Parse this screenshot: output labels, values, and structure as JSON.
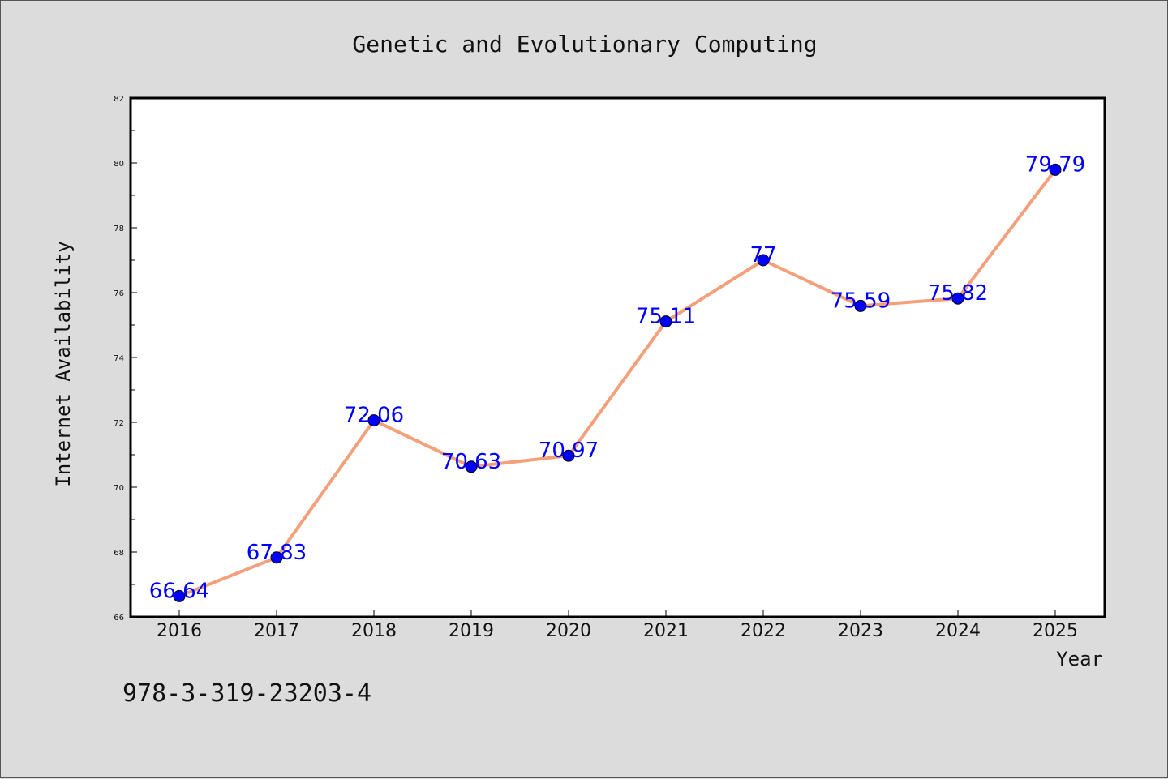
{
  "chart_data": {
    "type": "line",
    "title": "Genetic and Evolutionary Computing",
    "xlabel": "Year",
    "ylabel": "Internet Availability",
    "categories": [
      "2016",
      "2017",
      "2018",
      "2019",
      "2020",
      "2021",
      "2022",
      "2023",
      "2024",
      "2025"
    ],
    "series": [
      {
        "values": [
          66.64,
          67.83,
          72.06,
          70.63,
          70.97,
          75.11,
          77,
          75.59,
          75.82,
          79.79
        ],
        "labels": [
          "66.64",
          "67.83",
          "72.06",
          "70.63",
          "70.97",
          "75.11",
          "77",
          "75.59",
          "75.82",
          "79.79"
        ],
        "line_color": "#f4a07a",
        "marker_color": "#0000ff"
      }
    ],
    "ylim": [
      66,
      82
    ],
    "yticks": [
      "66",
      "68",
      "70",
      "72",
      "74",
      "76",
      "78",
      "80",
      "82"
    ],
    "grid": false,
    "legend": "none"
  },
  "footer": {
    "isbn": "978-3-319-23203-4"
  }
}
